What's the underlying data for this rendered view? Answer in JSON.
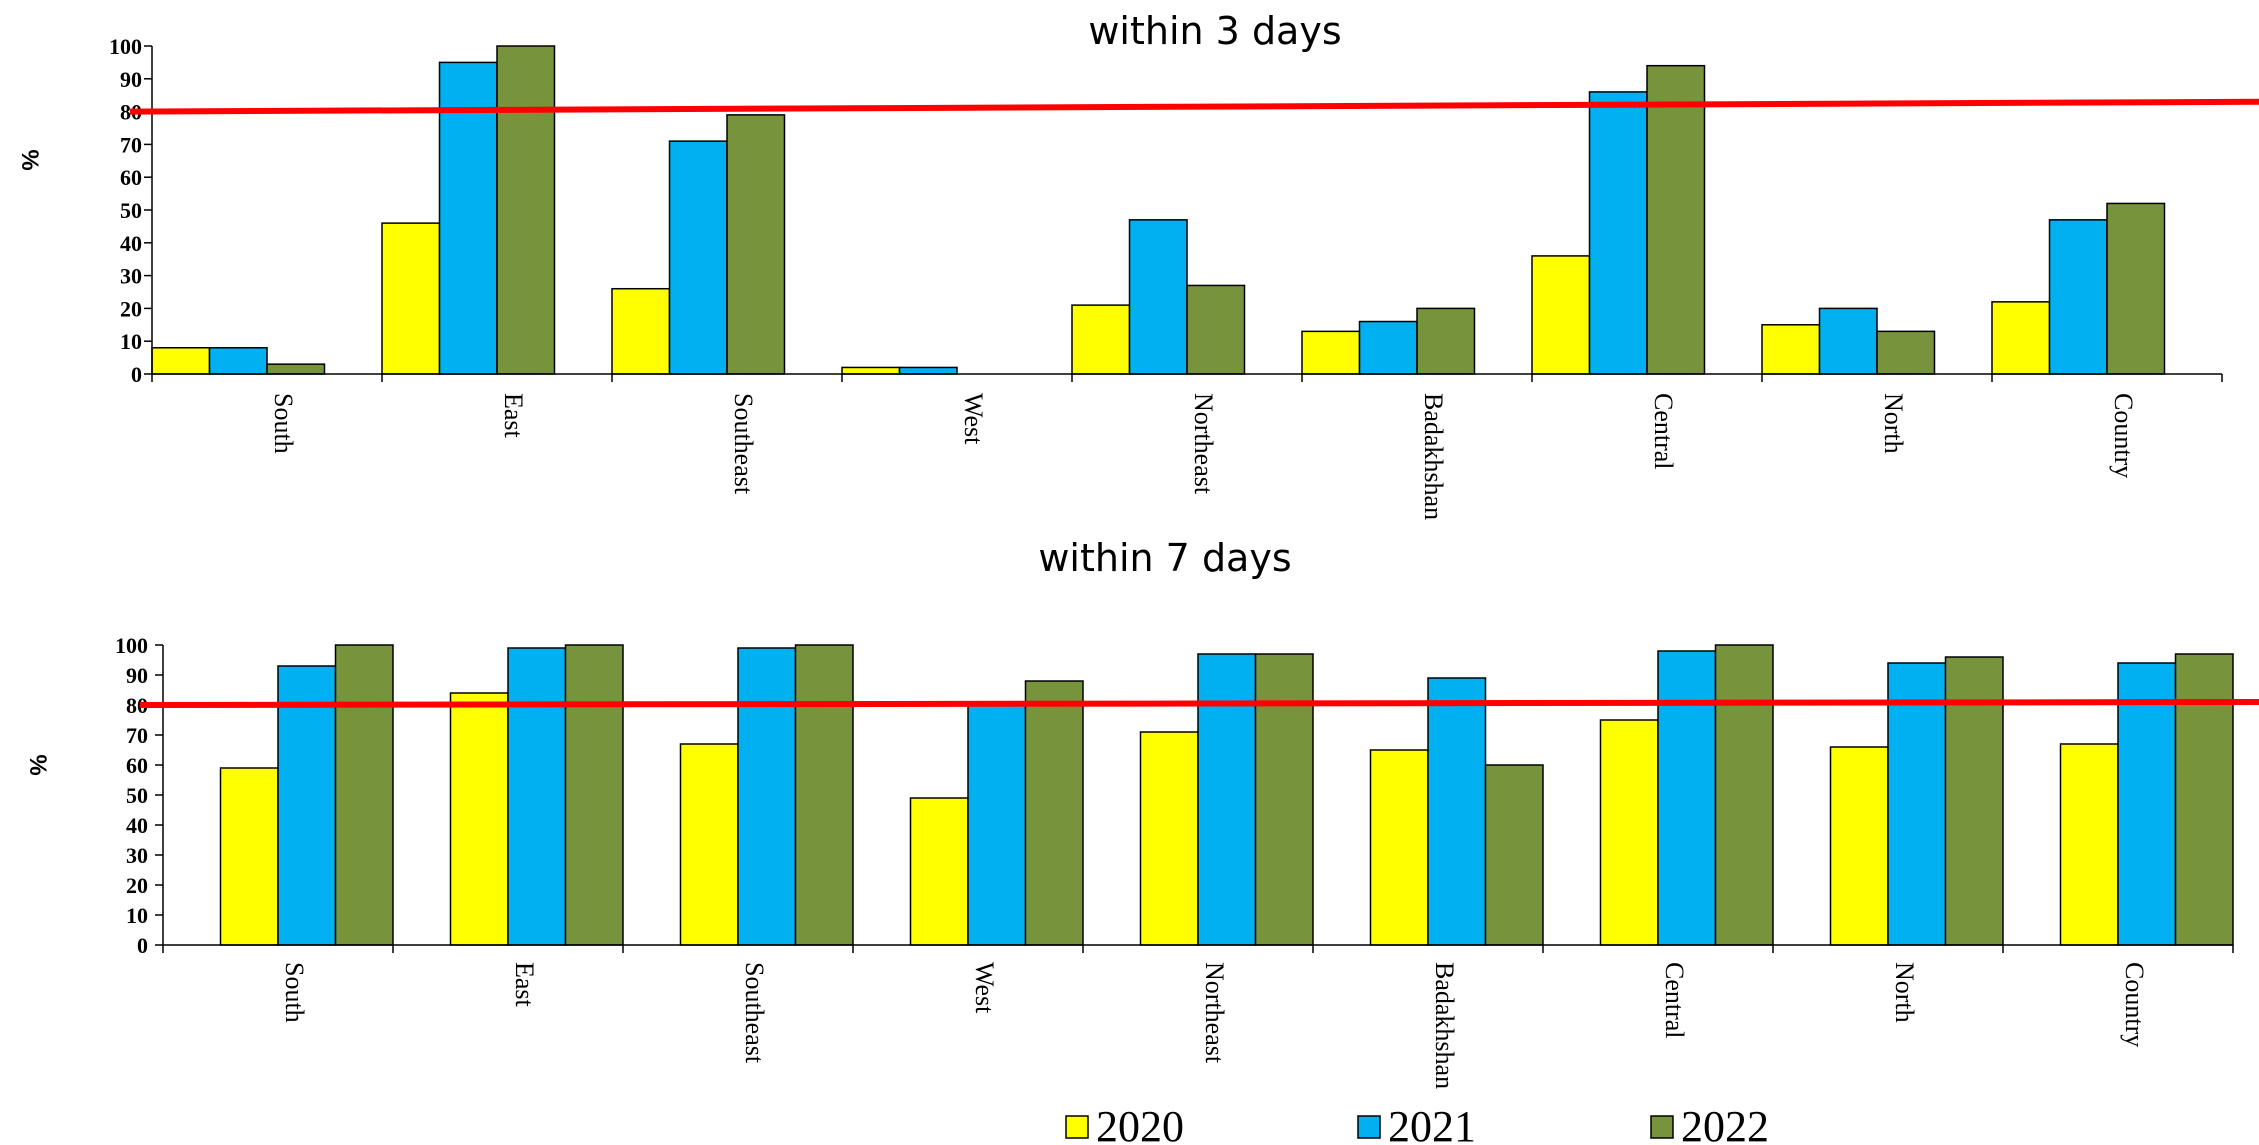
{
  "colors": {
    "series": [
      "#ffff00",
      "#00b0f0",
      "#77933c"
    ],
    "target_line": "#ff0000",
    "bar_outline": "#000000"
  },
  "legend": [
    "2020",
    "2021",
    "2022"
  ],
  "chart_data": [
    {
      "type": "bar",
      "title": "within 3 days",
      "ylabel": "%",
      "ylim": [
        0,
        100
      ],
      "yticks": [
        "0",
        "10",
        "20",
        "30",
        "40",
        "50",
        "60",
        "70",
        "80",
        "90",
        "100"
      ],
      "categories": [
        "South",
        "East",
        "Southeast",
        "West",
        "Northeast",
        "Badakhshan",
        "Central",
        "North",
        "Country"
      ],
      "series": [
        {
          "name": "2020",
          "values": [
            8,
            46,
            26,
            2,
            21,
            13,
            36,
            15,
            22
          ]
        },
        {
          "name": "2021",
          "values": [
            8,
            95,
            71,
            2,
            47,
            16,
            86,
            20,
            47
          ]
        },
        {
          "name": "2022",
          "values": [
            3,
            100,
            79,
            0,
            27,
            20,
            94,
            13,
            52
          ]
        }
      ],
      "target_line": {
        "start": 80,
        "end": 83
      },
      "grid": false,
      "legend_position": "bottom"
    },
    {
      "type": "bar",
      "title": "within 7 days",
      "ylabel": "%",
      "ylim": [
        0,
        100
      ],
      "yticks": [
        "0",
        "10",
        "20",
        "30",
        "40",
        "50",
        "60",
        "70",
        "80",
        "90",
        "100"
      ],
      "categories": [
        "South",
        "East",
        "Southeast",
        "West",
        "Northeast",
        "Badakhshan",
        "Central",
        "North",
        "Country"
      ],
      "series": [
        {
          "name": "2020",
          "values": [
            59,
            84,
            67,
            49,
            71,
            65,
            75,
            66,
            67
          ]
        },
        {
          "name": "2021",
          "values": [
            93,
            99,
            99,
            81,
            97,
            89,
            98,
            94,
            94
          ]
        },
        {
          "name": "2022",
          "values": [
            100,
            100,
            100,
            88,
            97,
            60,
            100,
            96,
            97
          ]
        }
      ],
      "target_line": {
        "start": 80,
        "end": 81
      },
      "grid": false,
      "legend_position": "bottom"
    }
  ]
}
